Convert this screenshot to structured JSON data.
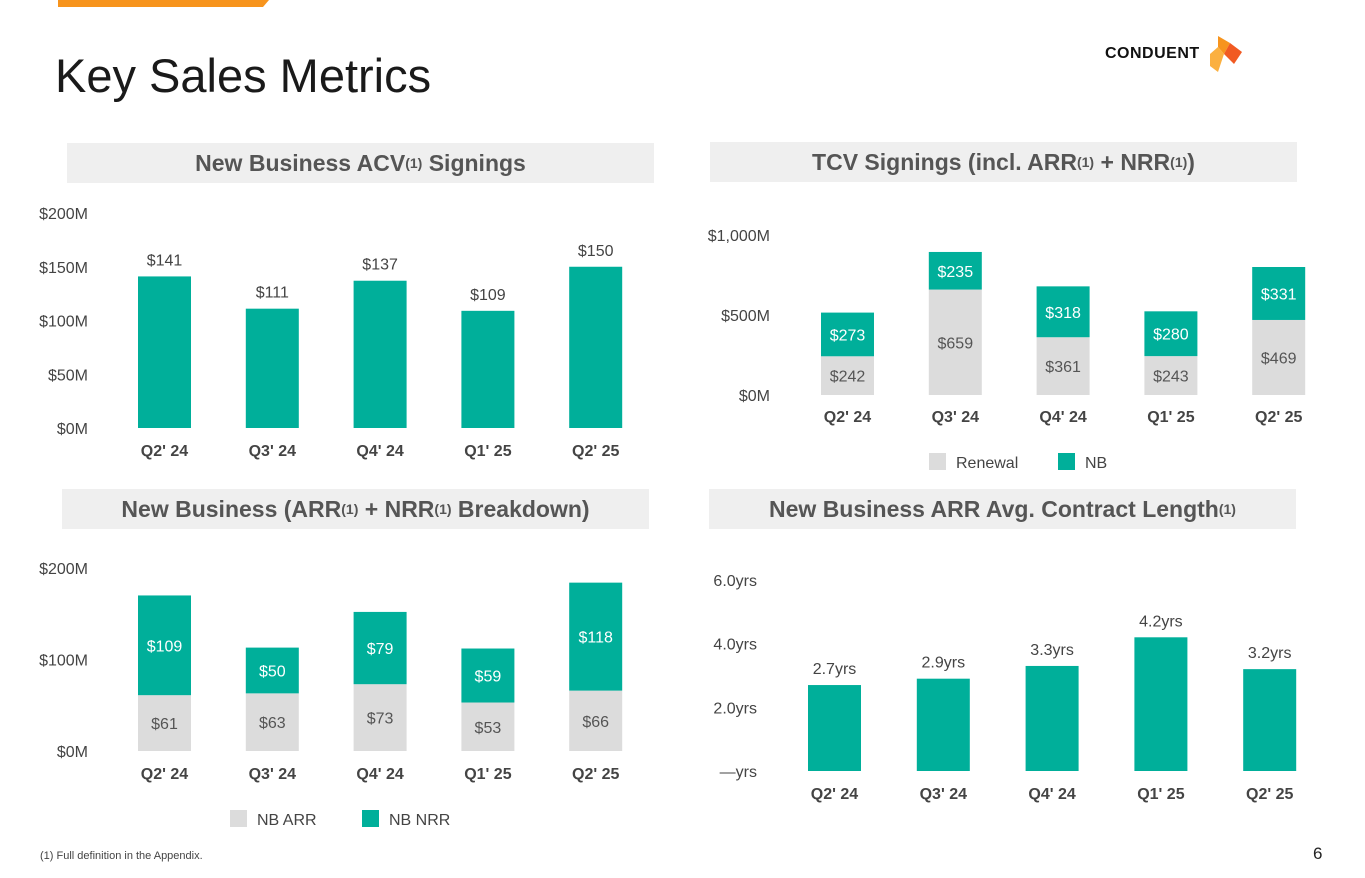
{
  "page": {
    "title": "Key Sales Metrics",
    "logo_text": "CONDUENT",
    "footnote": "(1) Full definition in the Appendix.",
    "page_number": "6"
  },
  "colors": {
    "teal": "#00af9a",
    "gray": "#dcdcdc",
    "orange": "#f7941d"
  },
  "panels": {
    "acv": {
      "title_a": "New Business ACV",
      "sup": "(1)",
      "title_b": " Signings"
    },
    "tcv": {
      "title_a": "TCV Signings (incl. ARR",
      "sup1": "(1)",
      "title_b": " + NRR",
      "sup2": "(1)",
      "title_c": ")"
    },
    "nb": {
      "title_a": "New Business (ARR",
      "sup1": "(1)",
      "title_b": " + NRR",
      "sup2": "(1)",
      "title_c": " Breakdown)"
    },
    "len": {
      "title_a": "New Business ARR Avg. Contract Length",
      "sup": "(1)"
    }
  },
  "chart_data": [
    {
      "id": "acv",
      "type": "bar",
      "categories": [
        "Q2' 24",
        "Q3' 24",
        "Q4' 24",
        "Q1' 25",
        "Q2' 25"
      ],
      "values": [
        141,
        111,
        137,
        109,
        150
      ],
      "data_labels": [
        "$141",
        "$111",
        "$137",
        "$109",
        "$150"
      ],
      "ylim": [
        0,
        200
      ],
      "yticks": [
        0,
        50,
        100,
        150,
        200
      ],
      "ytick_labels": [
        "$0M",
        "$50M",
        "$100M",
        "$150M",
        "$200M"
      ]
    },
    {
      "id": "tcv",
      "type": "bar",
      "stacked": true,
      "categories": [
        "Q2' 24",
        "Q3' 24",
        "Q4' 24",
        "Q1' 25",
        "Q2' 25"
      ],
      "series": [
        {
          "name": "Renewal",
          "values": [
            242,
            659,
            361,
            243,
            469
          ],
          "labels": [
            "$242",
            "$659",
            "$361",
            "$243",
            "$469"
          ]
        },
        {
          "name": "NB",
          "values": [
            273,
            235,
            318,
            280,
            331
          ],
          "labels": [
            "$273",
            "$235",
            "$318",
            "$280",
            "$331"
          ]
        }
      ],
      "ylim": [
        0,
        1000
      ],
      "yticks": [
        0,
        500,
        1000
      ],
      "ytick_labels": [
        "$0M",
        "$500M",
        "$1,000M"
      ],
      "legend": "bottom"
    },
    {
      "id": "nb",
      "type": "bar",
      "stacked": true,
      "categories": [
        "Q2' 24",
        "Q3' 24",
        "Q4' 24",
        "Q1' 25",
        "Q2' 25"
      ],
      "series": [
        {
          "name": "NB ARR",
          "values": [
            61,
            63,
            73,
            53,
            66
          ],
          "labels": [
            "$61",
            "$63",
            "$73",
            "$53",
            "$66"
          ]
        },
        {
          "name": "NB NRR",
          "values": [
            109,
            50,
            79,
            59,
            118
          ],
          "labels": [
            "$109",
            "$50",
            "$79",
            "$59",
            "$118"
          ]
        }
      ],
      "ylim": [
        0,
        200
      ],
      "yticks": [
        0,
        100,
        200
      ],
      "ytick_labels": [
        "$0M",
        "$100M",
        "$200M"
      ],
      "legend": "bottom"
    },
    {
      "id": "len",
      "type": "bar",
      "categories": [
        "Q2' 24",
        "Q3' 24",
        "Q4' 24",
        "Q1' 25",
        "Q2' 25"
      ],
      "values": [
        2.7,
        2.9,
        3.3,
        4.2,
        3.2
      ],
      "data_labels": [
        "2.7yrs",
        "2.9yrs",
        "3.3yrs",
        "4.2yrs",
        "3.2yrs"
      ],
      "ylim": [
        0,
        6
      ],
      "yticks": [
        0,
        2,
        4,
        6
      ],
      "ytick_labels": [
        "—yrs",
        "2.0yrs",
        "4.0yrs",
        "6.0yrs"
      ]
    }
  ]
}
